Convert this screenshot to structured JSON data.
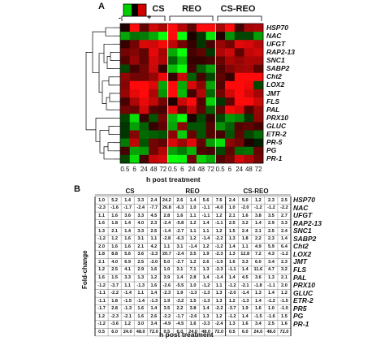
{
  "panel_a": {
    "label": "A",
    "legend": {
      "minus": "-",
      "plus": "+",
      "colors": [
        "#00d000",
        "#000000",
        "#d00000"
      ]
    },
    "groups": [
      "CS",
      "REO",
      "CS-REO"
    ],
    "times": [
      "0.5",
      "6",
      "24",
      "48",
      "72"
    ],
    "genes": [
      "HSP70",
      "NAC",
      "UFGT",
      "RAP2-13",
      "SNC1",
      "SABP2",
      "Cht2",
      "LOX2",
      "JMT",
      "FLS",
      "PAL",
      "PRX10",
      "GLUC",
      "ETR-2",
      "PR-5",
      "PG",
      "PR-1"
    ],
    "x_title": "h post treatment"
  },
  "panel_b": {
    "label": "B",
    "groups": [
      "CS",
      "REO",
      "CS-REO"
    ],
    "y_title": "Fold-change",
    "x_title": "h post treatment",
    "time_row": [
      "0.5",
      "6.0",
      "24.0",
      "48.0",
      "72.0",
      "0.5",
      "6.0",
      "24.0",
      "48.0",
      "72.0",
      "0.5",
      "6.0",
      "24.0",
      "48.0",
      "72.0"
    ],
    "genes": [
      "HSP70",
      "NAC",
      "UFGT",
      "RAP2-13",
      "SNC1",
      "SABP2",
      "Cht2",
      "LOX2",
      "JMT",
      "FLS",
      "PAL",
      "PRX10",
      "GLUC",
      "ETR-2",
      "PR5",
      "PG",
      "PR-1"
    ]
  },
  "chart_data": {
    "type": "heatmap",
    "title": "",
    "xlabel": "h post treatment",
    "ylabel": "Fold-change",
    "columns": [
      "CS 0.5",
      "CS 6",
      "CS 24",
      "CS 48",
      "CS 72",
      "REO 0.5",
      "REO 6",
      "REO 24",
      "REO 48",
      "REO 72",
      "CS-REO 0.5",
      "CS-REO 6",
      "CS-REO 24",
      "CS-REO 48",
      "CS-REO 72"
    ],
    "rows": [
      "HSP70",
      "NAC",
      "UFGT",
      "RAP2-13",
      "SNC1",
      "SABP2",
      "Cht2",
      "LOX2",
      "JMT",
      "FLS",
      "PAL",
      "PRX10",
      "GLUC",
      "ETR-2",
      "PR5",
      "PG",
      "PR-1"
    ],
    "values": [
      [
        1.0,
        5.2,
        1.4,
        3.3,
        2.4,
        24.2,
        2.6,
        1.4,
        5.6,
        7.6,
        2.4,
        5.0,
        1.2,
        2.3,
        2.5
      ],
      [
        -2.3,
        -1.6,
        -1.7,
        -2.4,
        -7.7,
        26.8,
        -6.3,
        1.0,
        -1.1,
        -4.0,
        1.0,
        -2.0,
        -1.2,
        -1.2,
        -2.2
      ],
      [
        1.1,
        1.6,
        3.6,
        3.3,
        4.5,
        2.8,
        1.6,
        1.1,
        -1.1,
        1.2,
        2.1,
        1.6,
        3.8,
        3.5,
        2.7
      ],
      [
        1.6,
        1.8,
        1.4,
        4.0,
        2.3,
        -2.4,
        -5.8,
        1.2,
        1.4,
        -1.1,
        2.5,
        3.2,
        1.4,
        2.9,
        3.3
      ],
      [
        1.3,
        2.1,
        1.4,
        3.3,
        2.5,
        -1.4,
        -2.7,
        1.1,
        1.1,
        1.2,
        1.5,
        2.4,
        2.1,
        2.5,
        2.4
      ],
      [
        -1.2,
        1.2,
        1.6,
        3.1,
        1.1,
        -2.8,
        -6.3,
        1.2,
        -1.4,
        -2.2,
        1.3,
        1.8,
        2.2,
        2.3,
        1.4
      ],
      [
        2.0,
        1.6,
        1.6,
        2.1,
        4.2,
        1.1,
        3.1,
        -1.4,
        1.2,
        -1.2,
        1.4,
        1.1,
        4.9,
        5.9,
        6.4
      ],
      [
        1.8,
        8.8,
        5.6,
        3.6,
        -2.3,
        20.7,
        -2.4,
        3.5,
        1.9,
        -2.3,
        1.3,
        12.8,
        7.2,
        4.3,
        -1.2
      ],
      [
        2.1,
        4.0,
        6.9,
        2.5,
        -2.0,
        5.0,
        -2.7,
        1.2,
        2.6,
        -1.5,
        1.6,
        3.3,
        6.0,
        3.4,
        2.3
      ],
      [
        1.2,
        2.5,
        4.1,
        2.9,
        1.6,
        1.0,
        3.1,
        7.1,
        1.3,
        -3.3,
        -1.1,
        1.4,
        11.6,
        4.7,
        3.2
      ],
      [
        1.6,
        1.5,
        3.3,
        1.3,
        1.2,
        3.9,
        1.4,
        2.8,
        1.4,
        -1.4,
        1.4,
        4.5,
        3.6,
        1.3,
        2.1
      ],
      [
        -1.2,
        -3.7,
        1.1,
        -1.3,
        1.6,
        -2.6,
        -5.5,
        1.0,
        -1.2,
        1.1,
        -1.2,
        -2.1,
        -1.8,
        -1.1,
        2.0
      ],
      [
        -1.1,
        -2.2,
        -1.4,
        1.1,
        1.4,
        -2.3,
        1.9,
        -1.3,
        -1.3,
        1.3,
        -2.0,
        -1.4,
        1.3,
        1.4,
        1.2
      ],
      [
        -1.1,
        1.8,
        -1.5,
        -1.4,
        -1.3,
        1.9,
        -3.2,
        1.5,
        -1.3,
        1.3,
        1.2,
        -1.3,
        1.4,
        -1.2,
        -1.5
      ],
      [
        -1.7,
        2.8,
        -1.3,
        1.6,
        1.4,
        3.5,
        2.2,
        3.8,
        1.4,
        -2.2,
        -3.7,
        1.9,
        1.6,
        1.0,
        -1.0
      ],
      [
        1.2,
        -2.3,
        -2.1,
        1.6,
        2.6,
        -2.2,
        -1.7,
        -2.6,
        1.3,
        1.2,
        -1.2,
        1.4,
        -1.5,
        -1.6,
        1.5
      ],
      [
        -1.2,
        -3.6,
        1.2,
        3.0,
        3.4,
        -4.9,
        -4.5,
        1.6,
        -3.3,
        -2.4,
        1.3,
        1.6,
        3.4,
        2.5,
        1.6
      ]
    ]
  }
}
